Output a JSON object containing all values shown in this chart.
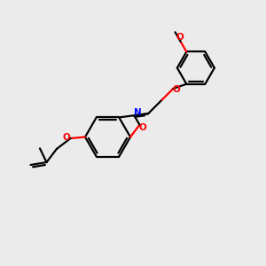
{
  "bg_color": "#ebebeb",
  "bond_color": "#000000",
  "o_color": "#ff0000",
  "n_color": "#0000ff",
  "linewidth": 1.6,
  "dpi": 100,
  "figsize": [
    3.0,
    3.0
  ],
  "xlim": [
    0,
    10
  ],
  "ylim": [
    0,
    10
  ]
}
